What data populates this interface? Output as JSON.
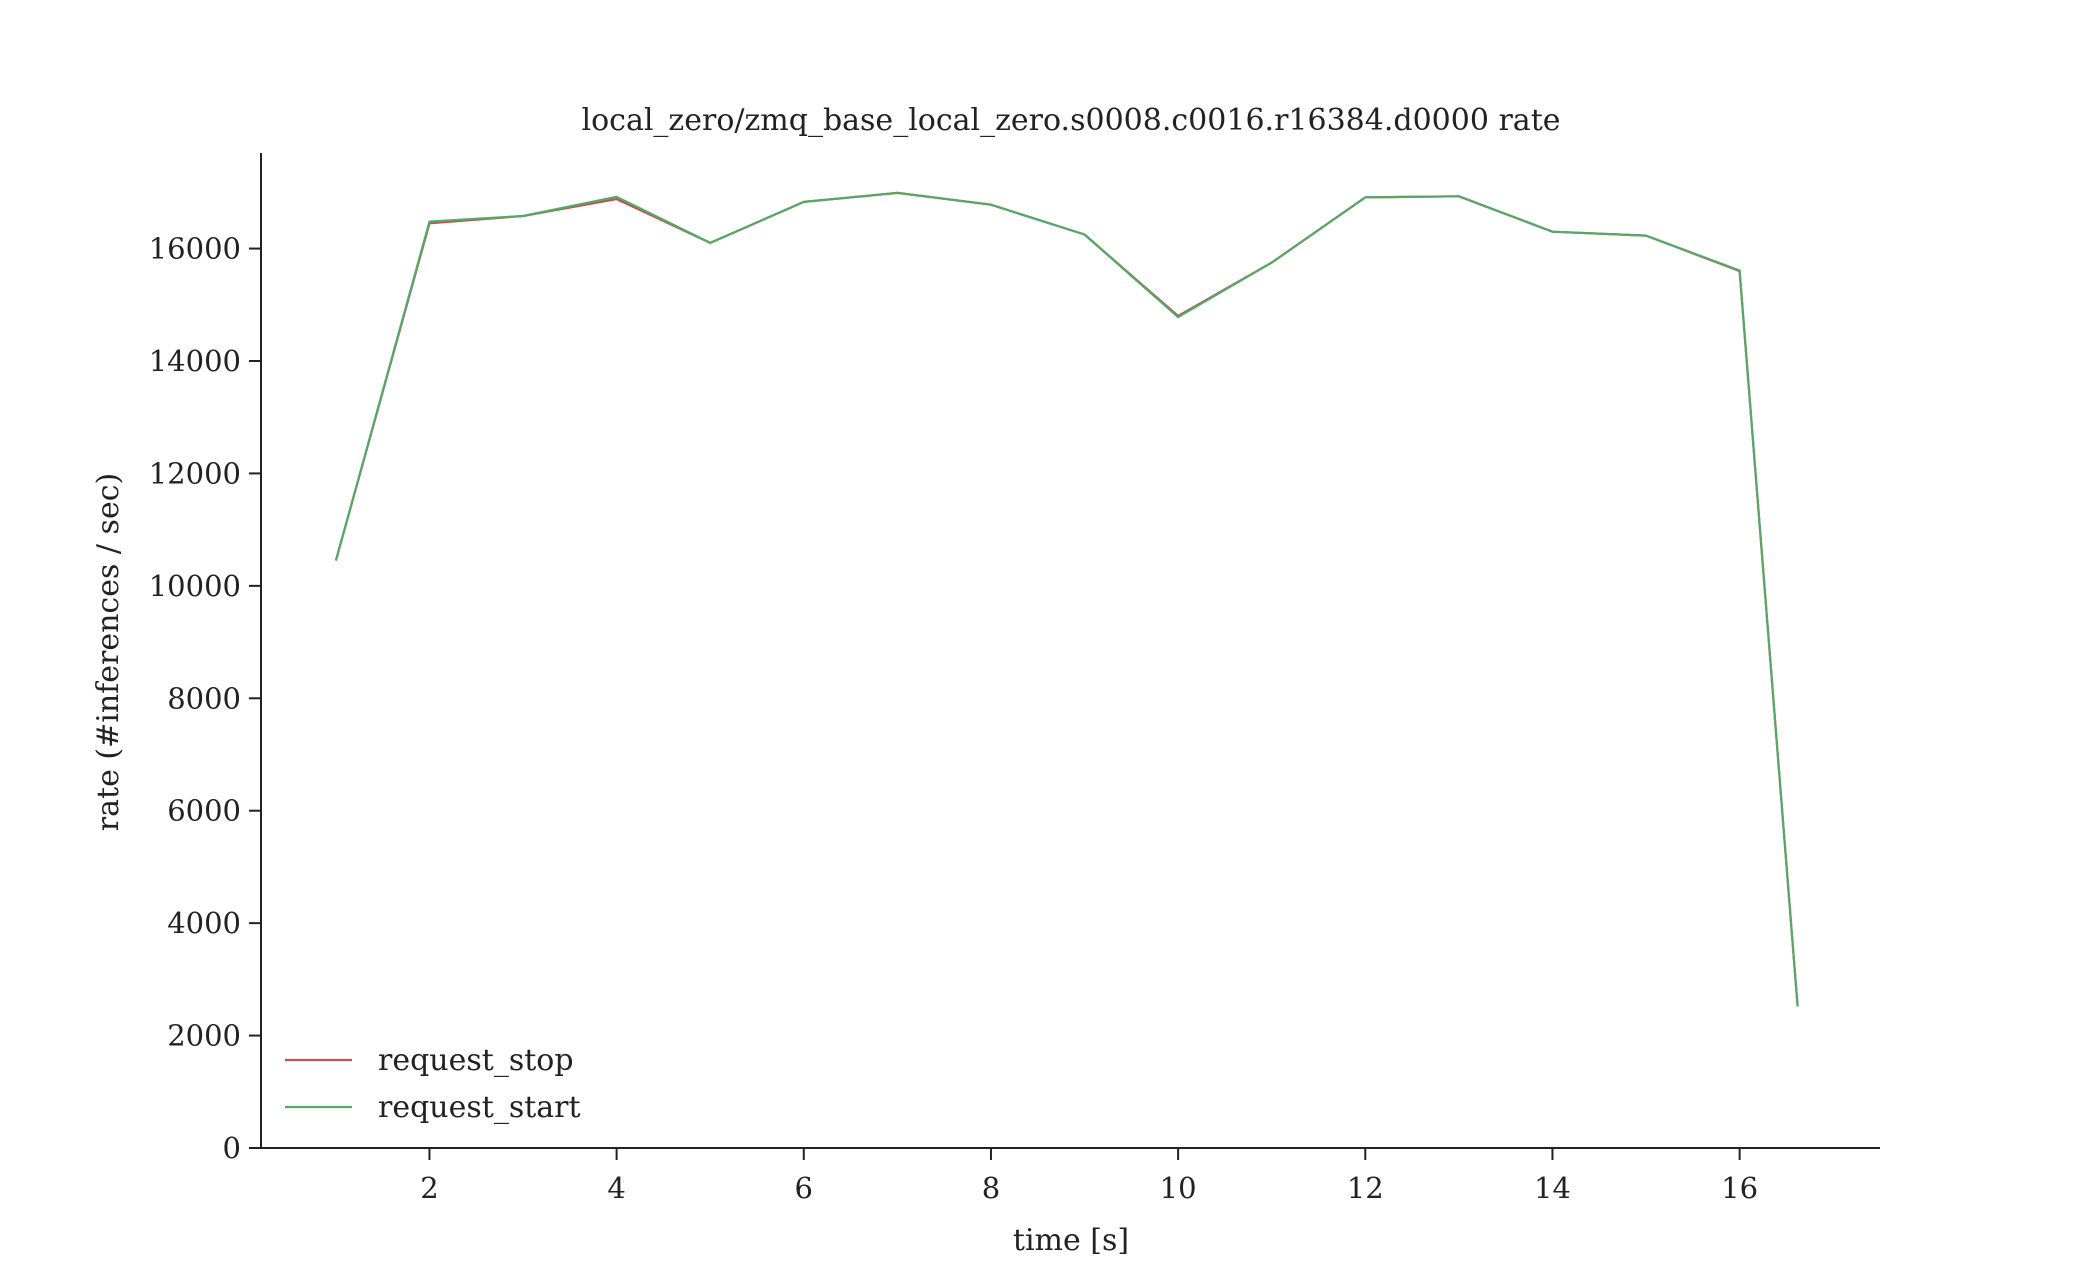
{
  "chart_data": {
    "type": "line",
    "title": "local_zero/zmq_base_local_zero.s0008.c0016.r16384.d0000 rate",
    "xlabel": "time [s]",
    "ylabel": "rate (#inferences / sec)",
    "xlim": [
      0.2,
      17.5
    ],
    "ylim": [
      0,
      17700
    ],
    "xticks": [
      2,
      4,
      6,
      8,
      10,
      12,
      14,
      16
    ],
    "yticks": [
      0,
      2000,
      4000,
      6000,
      8000,
      10000,
      12000,
      14000,
      16000
    ],
    "grid": false,
    "legend_position": "lower-left",
    "x": [
      1,
      2,
      3,
      4,
      5,
      6,
      7,
      8,
      9,
      10,
      11,
      12,
      13,
      14,
      15,
      16,
      16.62
    ],
    "series": [
      {
        "name": "request_stop",
        "color": "#c44e52",
        "values": [
          10450,
          16450,
          16580,
          16880,
          16100,
          16830,
          16990,
          16780,
          16250,
          14800,
          15750,
          16910,
          16930,
          16300,
          16230,
          15600,
          2520
        ]
      },
      {
        "name": "request_start",
        "color": "#55a868",
        "values": [
          10450,
          16480,
          16580,
          16920,
          16100,
          16830,
          16990,
          16780,
          16250,
          14780,
          15750,
          16910,
          16930,
          16300,
          16230,
          15610,
          2520
        ]
      }
    ]
  }
}
